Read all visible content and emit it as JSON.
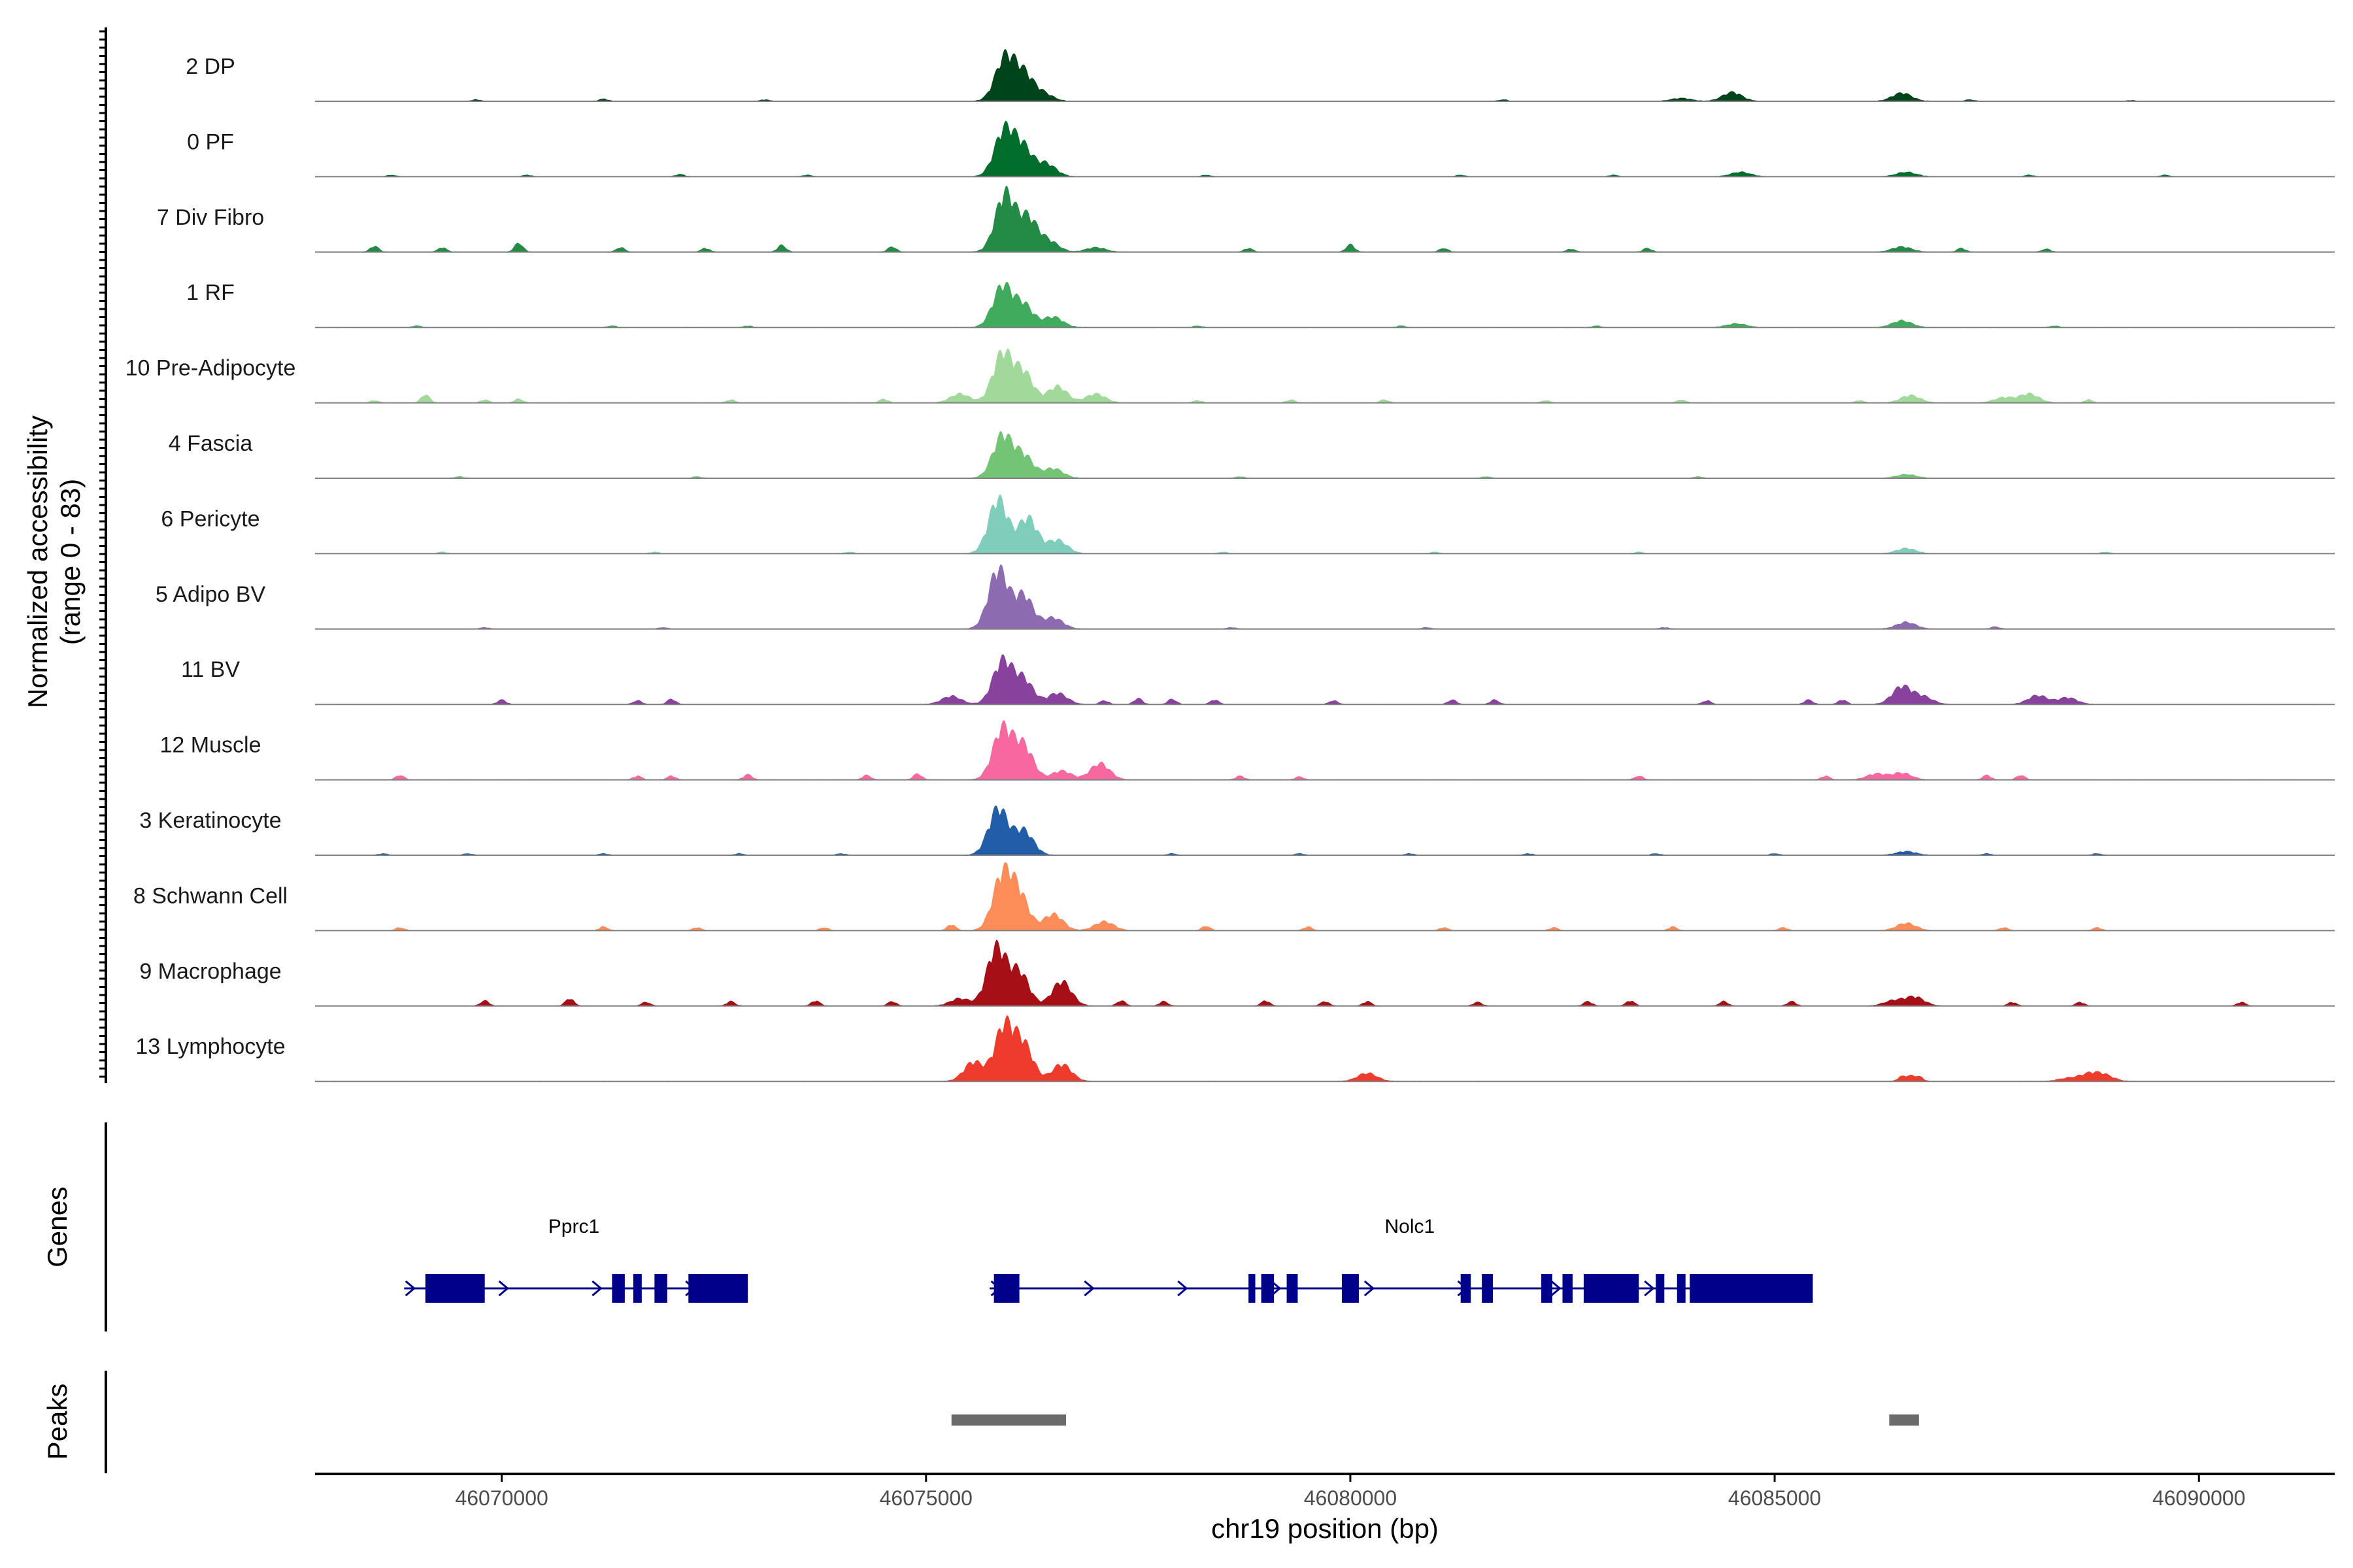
{
  "chart_data": {
    "type": "area",
    "title": "",
    "ylabel_line1": "Normalized accessibility",
    "ylabel_line2": "(range 0 - 83)",
    "y_range": [
      0,
      83
    ],
    "xlabel": "chr19 position (bp)",
    "xlim": [
      46067800,
      46091600
    ],
    "xticks": [
      46070000,
      46075000,
      46080000,
      46085000,
      46090000
    ],
    "xtick_labels": [
      "46070000",
      "46075000",
      "46080000",
      "46085000",
      "46090000"
    ],
    "genes_label": "Genes",
    "peaks_label": "Peaks",
    "colors": {
      "gene": "#00008b",
      "peak": "#6b6b6b",
      "baseline": "#808080",
      "axis": "#000000"
    },
    "tracks": [
      {
        "name": "2 DP",
        "color": "#00441b",
        "peaks": [
          [
            46075930,
            58
          ],
          [
            46076150,
            35
          ],
          [
            46076380,
            10
          ],
          [
            46084500,
            12
          ],
          [
            46086500,
            11
          ],
          [
            46083900,
            4
          ]
        ],
        "bumps": [
          [
            46069700,
            2
          ],
          [
            46071200,
            3
          ],
          [
            46073100,
            2
          ],
          [
            46081800,
            2
          ],
          [
            46087300,
            2
          ],
          [
            46089200,
            1
          ]
        ]
      },
      {
        "name": "0 PF",
        "color": "#006d2c",
        "peaks": [
          [
            46075920,
            61
          ],
          [
            46076140,
            38
          ],
          [
            46076420,
            17
          ],
          [
            46084600,
            6
          ],
          [
            46086550,
            6
          ]
        ],
        "bumps": [
          [
            46068700,
            2
          ],
          [
            46070300,
            2
          ],
          [
            46072100,
            3
          ],
          [
            46073600,
            2
          ],
          [
            46078300,
            2
          ],
          [
            46081300,
            2
          ],
          [
            46083100,
            2
          ],
          [
            46088000,
            2
          ],
          [
            46089600,
            2
          ]
        ]
      },
      {
        "name": "7 Div Fibro",
        "color": "#238b45",
        "peaks": [
          [
            46075930,
            78
          ],
          [
            46076200,
            45
          ],
          [
            46076450,
            14
          ],
          [
            46077000,
            6
          ],
          [
            46086500,
            7
          ]
        ],
        "bumps": [
          [
            46068500,
            8
          ],
          [
            46069300,
            6
          ],
          [
            46070200,
            12
          ],
          [
            46071400,
            6
          ],
          [
            46072400,
            5
          ],
          [
            46073300,
            9
          ],
          [
            46074600,
            7
          ],
          [
            46078800,
            5
          ],
          [
            46080000,
            10
          ],
          [
            46081100,
            5
          ],
          [
            46082600,
            4
          ],
          [
            46083500,
            5
          ],
          [
            46087200,
            5
          ],
          [
            46088200,
            4
          ]
        ]
      },
      {
        "name": "1 RF",
        "color": "#41ab5d",
        "peaks": [
          [
            46075900,
            55
          ],
          [
            46076150,
            30
          ],
          [
            46076500,
            14
          ],
          [
            46084550,
            5
          ],
          [
            46086500,
            9
          ]
        ],
        "bumps": [
          [
            46069000,
            2
          ],
          [
            46071300,
            2
          ],
          [
            46072900,
            2
          ],
          [
            46078200,
            2
          ],
          [
            46080600,
            2
          ],
          [
            46082900,
            2
          ],
          [
            46088300,
            2
          ]
        ]
      },
      {
        "name": "10 Pre-Adipocyte",
        "color": "#a1d99b",
        "peaks": [
          [
            46075900,
            66
          ],
          [
            46076150,
            40
          ],
          [
            46076550,
            22
          ],
          [
            46075400,
            12
          ],
          [
            46077000,
            12
          ],
          [
            46086600,
            10
          ],
          [
            46088000,
            12
          ],
          [
            46087700,
            7
          ]
        ],
        "bumps": [
          [
            46068500,
            3
          ],
          [
            46069100,
            11
          ],
          [
            46069800,
            4
          ],
          [
            46070200,
            5
          ],
          [
            46072700,
            4
          ],
          [
            46074500,
            5
          ],
          [
            46078200,
            3
          ],
          [
            46079300,
            4
          ],
          [
            46080400,
            4
          ],
          [
            46082300,
            3
          ],
          [
            46083900,
            4
          ],
          [
            46086000,
            3
          ],
          [
            46088700,
            4
          ]
        ]
      },
      {
        "name": "4 Fascia",
        "color": "#74c476",
        "peaks": [
          [
            46075900,
            57
          ],
          [
            46076150,
            30
          ],
          [
            46076500,
            13
          ],
          [
            46086550,
            5
          ]
        ],
        "bumps": [
          [
            46069500,
            2
          ],
          [
            46072300,
            2
          ],
          [
            46078700,
            2
          ],
          [
            46081600,
            2
          ],
          [
            46084100,
            2
          ]
        ]
      },
      {
        "name": "6 Pericyte",
        "color": "#7fcdbb",
        "peaks": [
          [
            46075850,
            73
          ],
          [
            46076200,
            48
          ],
          [
            46076550,
            18
          ],
          [
            46086550,
            7
          ]
        ],
        "bumps": [
          [
            46069300,
            2
          ],
          [
            46071800,
            2
          ],
          [
            46074100,
            2
          ],
          [
            46078500,
            2
          ],
          [
            46081000,
            2
          ],
          [
            46083400,
            2
          ],
          [
            46088900,
            2
          ]
        ]
      },
      {
        "name": "5 Adipo BV",
        "color": "#8c6bb1",
        "peaks": [
          [
            46075850,
            80
          ],
          [
            46076150,
            45
          ],
          [
            46076500,
            15
          ],
          [
            46086550,
            9
          ]
        ],
        "bumps": [
          [
            46069800,
            2
          ],
          [
            46071900,
            2
          ],
          [
            46078600,
            2
          ],
          [
            46080900,
            2
          ],
          [
            46083700,
            2
          ],
          [
            46087600,
            3
          ]
        ]
      },
      {
        "name": "11 BV",
        "color": "#88419d",
        "peaks": [
          [
            46075900,
            58
          ],
          [
            46076150,
            33
          ],
          [
            46075300,
            11
          ],
          [
            46076550,
            15
          ],
          [
            46086500,
            24
          ],
          [
            46086750,
            10
          ],
          [
            46088100,
            12
          ],
          [
            46088450,
            9
          ]
        ],
        "bumps": [
          [
            46070000,
            6
          ],
          [
            46071600,
            5
          ],
          [
            46072000,
            7
          ],
          [
            46077100,
            5
          ],
          [
            46077500,
            8
          ],
          [
            46077900,
            7
          ],
          [
            46078400,
            6
          ],
          [
            46079800,
            5
          ],
          [
            46081200,
            6
          ],
          [
            46081700,
            6
          ],
          [
            46084200,
            5
          ],
          [
            46085400,
            6
          ],
          [
            46085800,
            6
          ]
        ]
      },
      {
        "name": "12 Muscle",
        "color": "#f768a1",
        "peaks": [
          [
            46075900,
            68
          ],
          [
            46076150,
            45
          ],
          [
            46076600,
            12
          ],
          [
            46077050,
            22
          ],
          [
            46086200,
            8
          ],
          [
            46086500,
            9
          ]
        ],
        "bumps": [
          [
            46068800,
            6
          ],
          [
            46071600,
            5
          ],
          [
            46072000,
            5
          ],
          [
            46072900,
            7
          ],
          [
            46074300,
            6
          ],
          [
            46074900,
            8
          ],
          [
            46078700,
            5
          ],
          [
            46079400,
            4
          ],
          [
            46083400,
            5
          ],
          [
            46085600,
            5
          ],
          [
            46087500,
            6
          ],
          [
            46087900,
            6
          ]
        ]
      },
      {
        "name": "3 Keratinocyte",
        "color": "#225ea8",
        "peaks": [
          [
            46075850,
            63
          ],
          [
            46076150,
            33
          ],
          [
            46086550,
            5
          ]
        ],
        "bumps": [
          [
            46068600,
            2
          ],
          [
            46069600,
            2
          ],
          [
            46071200,
            2
          ],
          [
            46072800,
            2
          ],
          [
            46074000,
            2
          ],
          [
            46077900,
            2
          ],
          [
            46079400,
            2
          ],
          [
            46080700,
            2
          ],
          [
            46082100,
            2
          ],
          [
            46083600,
            2
          ],
          [
            46085000,
            2
          ],
          [
            46087500,
            2
          ],
          [
            46088800,
            2
          ]
        ]
      },
      {
        "name": "8 Schwann Cell",
        "color": "#fc8d59",
        "peaks": [
          [
            46075900,
            73
          ],
          [
            46076100,
            45
          ],
          [
            46076500,
            22
          ],
          [
            46077100,
            12
          ],
          [
            46086550,
            10
          ]
        ],
        "bumps": [
          [
            46068800,
            4
          ],
          [
            46071200,
            5
          ],
          [
            46072300,
            4
          ],
          [
            46073800,
            4
          ],
          [
            46075300,
            8
          ],
          [
            46078300,
            6
          ],
          [
            46079500,
            5
          ],
          [
            46081100,
            4
          ],
          [
            46082400,
            4
          ],
          [
            46083800,
            5
          ],
          [
            46085100,
            4
          ],
          [
            46087700,
            4
          ],
          [
            46088800,
            4
          ]
        ]
      },
      {
        "name": "9 Macrophage",
        "color": "#a50f15",
        "peaks": [
          [
            46075830,
            78
          ],
          [
            46076100,
            45
          ],
          [
            46076600,
            33
          ],
          [
            46075400,
            10
          ],
          [
            46086650,
            12
          ],
          [
            46086400,
            7
          ]
        ],
        "bumps": [
          [
            46069800,
            7
          ],
          [
            46070800,
            10
          ],
          [
            46071700,
            5
          ],
          [
            46072700,
            6
          ],
          [
            46073700,
            7
          ],
          [
            46074600,
            6
          ],
          [
            46077300,
            7
          ],
          [
            46077800,
            6
          ],
          [
            46079000,
            7
          ],
          [
            46079700,
            6
          ],
          [
            46080200,
            6
          ],
          [
            46081500,
            5
          ],
          [
            46082800,
            6
          ],
          [
            46083300,
            7
          ],
          [
            46084400,
            6
          ],
          [
            46085200,
            6
          ],
          [
            46087800,
            5
          ],
          [
            46088600,
            5
          ],
          [
            46090500,
            5
          ]
        ]
      },
      {
        "name": "13 Lymphocyte",
        "color": "#ef3b2c",
        "peaks": [
          [
            46075920,
            73
          ],
          [
            46076150,
            48
          ],
          [
            46075560,
            26
          ],
          [
            46076600,
            23
          ],
          [
            46080200,
            11
          ],
          [
            46088700,
            9
          ],
          [
            46088880,
            8
          ],
          [
            46088450,
            4
          ]
        ],
        "bumps": [
          [
            46086600,
            6
          ],
          [
            46086500,
            6
          ],
          [
            46086700,
            6
          ]
        ]
      }
    ],
    "genes": [
      {
        "name": "Pprc1",
        "start": 46068850,
        "end": 46072900,
        "label_pos": 46070850,
        "strand": "+",
        "exons": [
          [
            46069100,
            46069800
          ],
          [
            46071300,
            46071450
          ],
          [
            46071550,
            46071650
          ],
          [
            46071800,
            46071950
          ],
          [
            46072200,
            46072900
          ]
        ]
      },
      {
        "name": "Nolc1",
        "start": 46075750,
        "end": 46085450,
        "label_pos": 46080700,
        "strand": "+",
        "exons": [
          [
            46075800,
            46076100
          ],
          [
            46078800,
            46078880
          ],
          [
            46078950,
            46079100
          ],
          [
            46079250,
            46079380
          ],
          [
            46079900,
            46080100
          ],
          [
            46081300,
            46081420
          ],
          [
            46081550,
            46081680
          ],
          [
            46082250,
            46082380
          ],
          [
            46082500,
            46082620
          ],
          [
            46082750,
            46083400
          ],
          [
            46083600,
            46083700
          ],
          [
            46083850,
            46083950
          ],
          [
            46084000,
            46085450
          ]
        ]
      }
    ],
    "peak_regions": [
      [
        46075300,
        46076650
      ],
      [
        46086350,
        46086700
      ]
    ]
  }
}
